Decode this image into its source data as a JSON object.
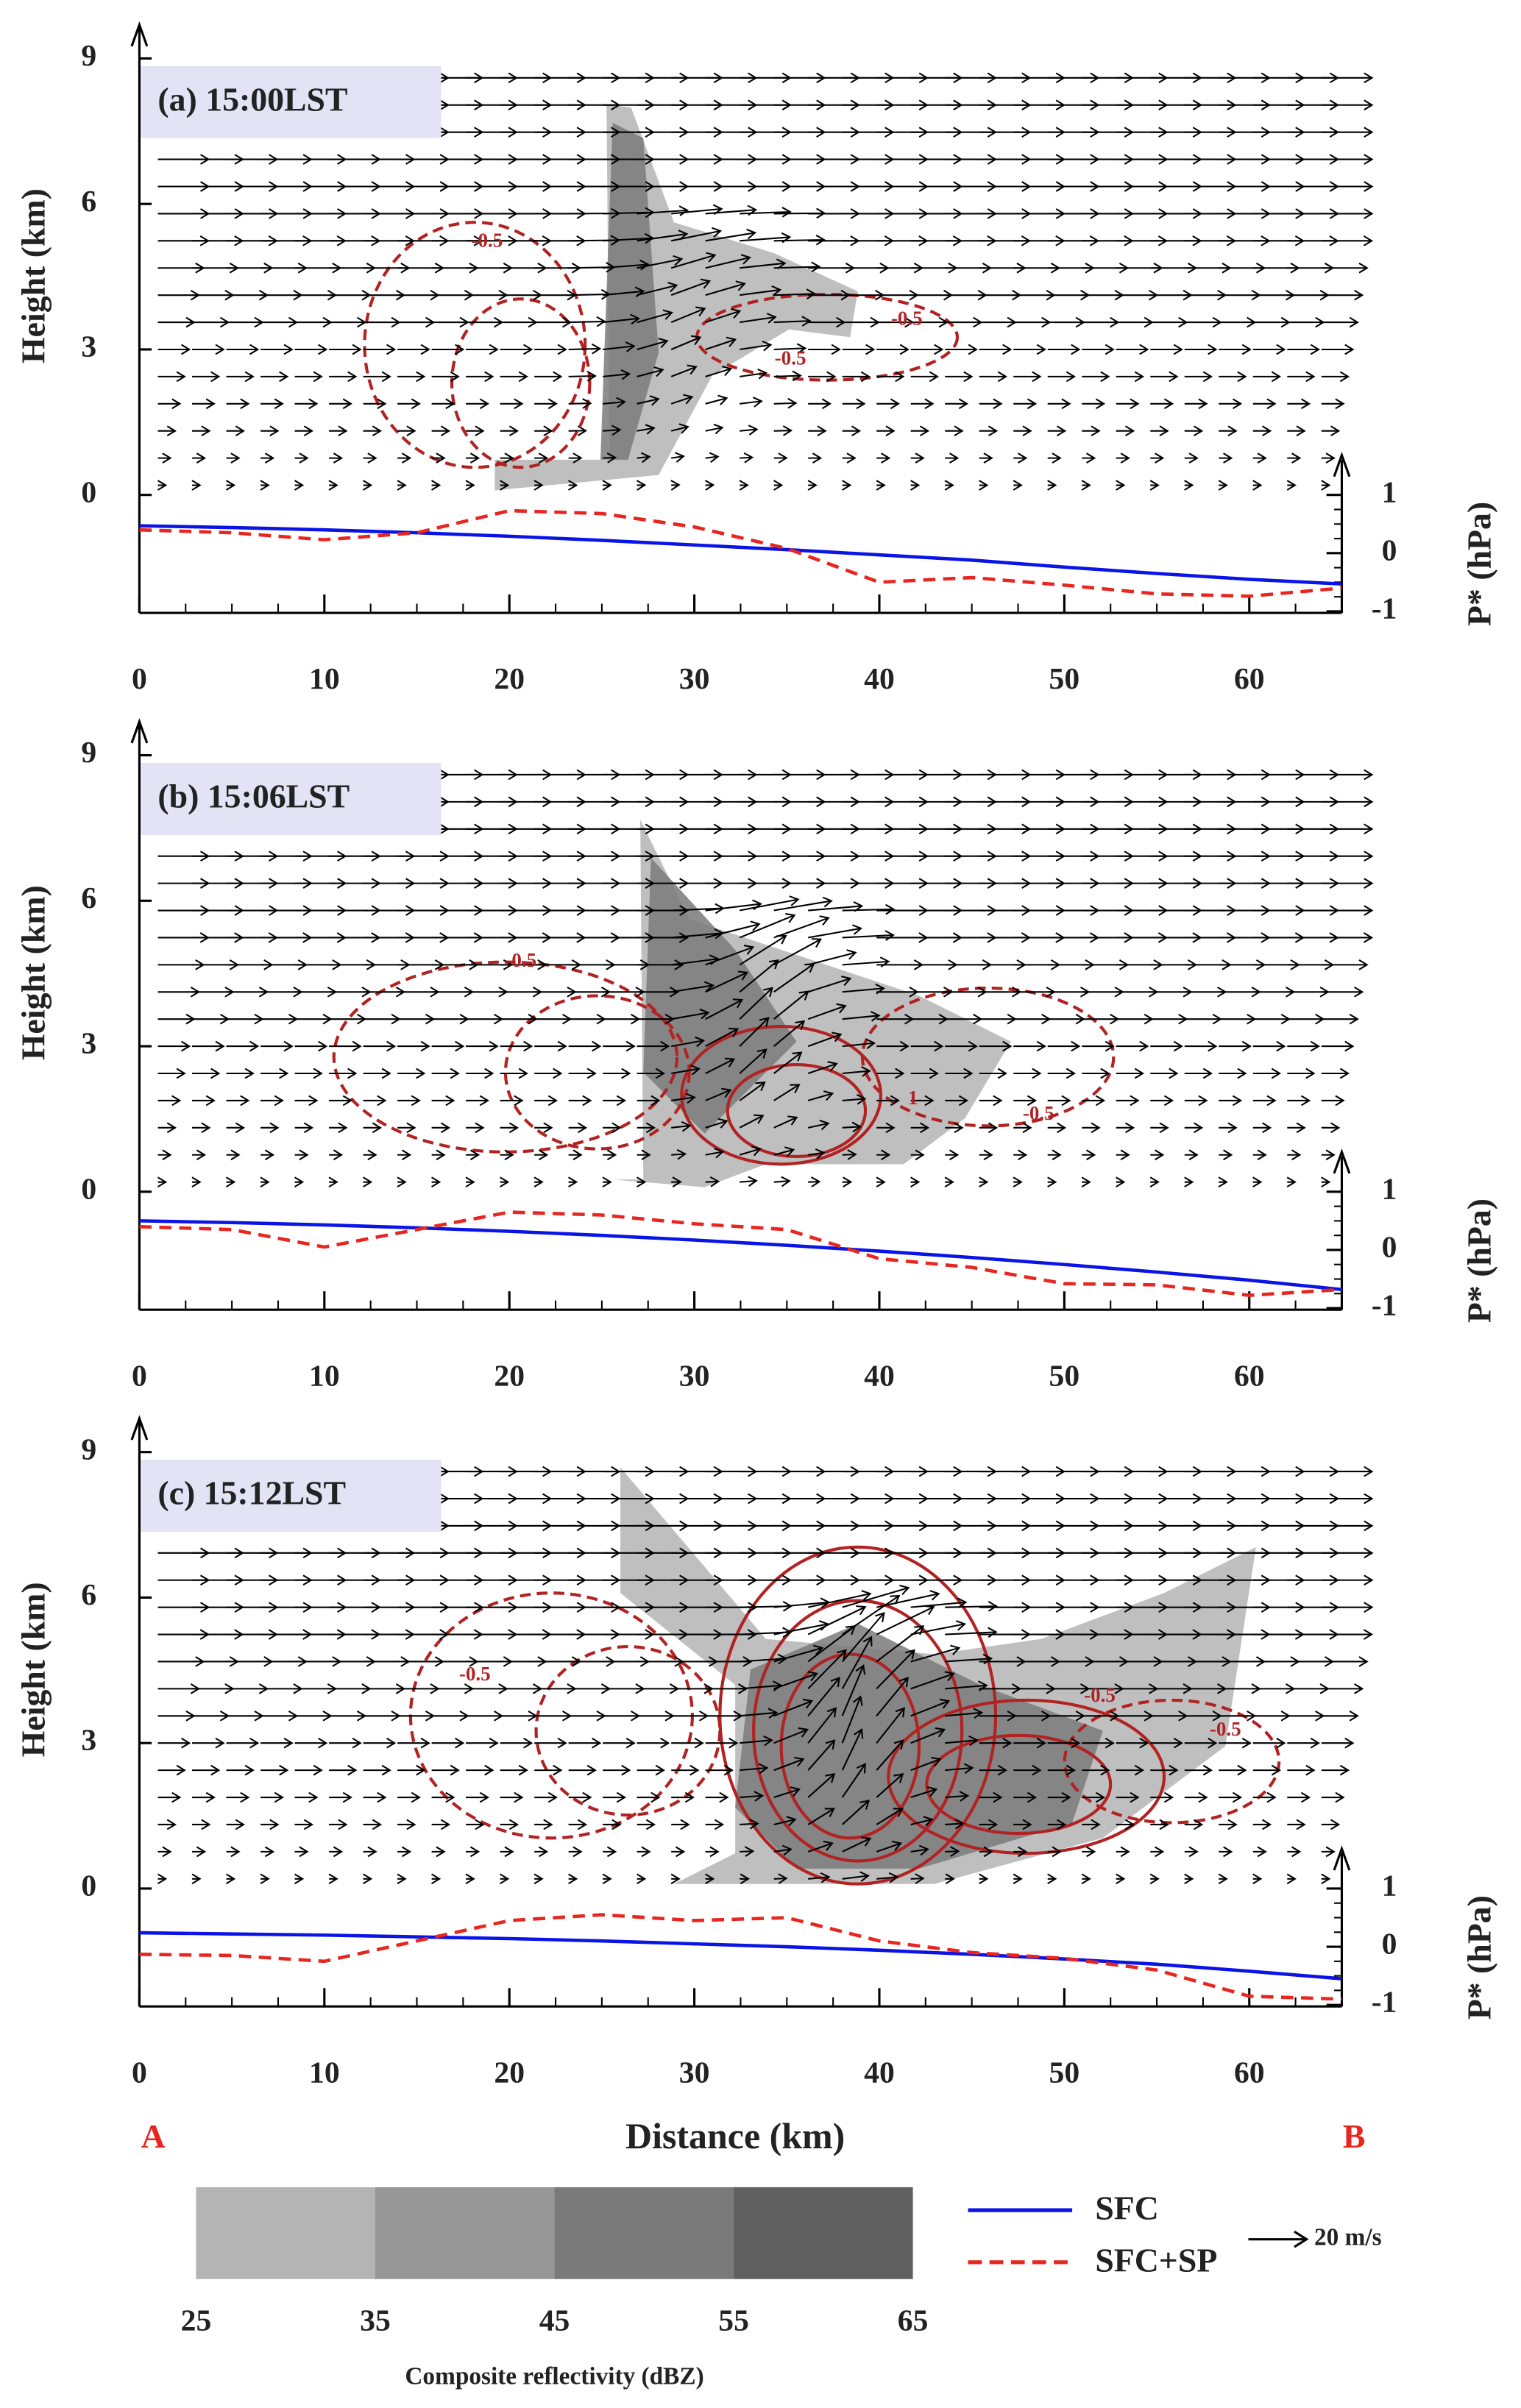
{
  "chart_data": [
    {
      "type": "line",
      "title": "(a) 15:00LST",
      "ylabel": "Height (km)",
      "y2label": "P* (hPa)",
      "x": [
        0,
        5,
        10,
        15,
        20,
        25,
        30,
        35,
        40,
        45,
        50,
        55,
        60,
        65
      ],
      "xlim": [
        0,
        65
      ],
      "xticks": [
        0,
        10,
        20,
        30,
        40,
        50,
        60
      ],
      "ylim": [
        0,
        9
      ],
      "yticks": [
        0,
        3,
        6,
        9
      ],
      "y2lim": [
        -1,
        1
      ],
      "y2ticks": [
        -1,
        0,
        1
      ],
      "series": [
        {
          "name": "SFC",
          "color": "#0a14e6",
          "axis": "y2",
          "values": [
            0.47,
            0.44,
            0.4,
            0.35,
            0.29,
            0.22,
            0.14,
            0.06,
            -0.03,
            -0.12,
            -0.24,
            -0.35,
            -0.45,
            -0.53
          ]
        },
        {
          "name": "SFC+SP",
          "color": "#e8251f",
          "axis": "y2",
          "dashed": true,
          "values": [
            0.4,
            0.35,
            0.23,
            0.35,
            0.73,
            0.68,
            0.45,
            0.08,
            -0.5,
            -0.42,
            -0.55,
            -0.7,
            -0.74,
            -0.6
          ]
        }
      ],
      "contour_labels": [
        "-0.5",
        "-0.5",
        "-0.5"
      ]
    },
    {
      "type": "line",
      "title": "(b) 15:06LST",
      "ylabel": "Height (km)",
      "y2label": "P* (hPa)",
      "x": [
        0,
        5,
        10,
        15,
        20,
        25,
        30,
        35,
        40,
        45,
        50,
        55,
        60,
        65
      ],
      "xlim": [
        0,
        65
      ],
      "xticks": [
        0,
        10,
        20,
        30,
        40,
        50,
        60
      ],
      "ylim": [
        0,
        9
      ],
      "yticks": [
        0,
        3,
        6,
        9
      ],
      "y2lim": [
        -1,
        1
      ],
      "y2ticks": [
        -1,
        0,
        1
      ],
      "series": [
        {
          "name": "SFC",
          "color": "#0a14e6",
          "axis": "y2",
          "values": [
            0.5,
            0.47,
            0.43,
            0.38,
            0.32,
            0.25,
            0.17,
            0.08,
            -0.02,
            -0.13,
            -0.25,
            -0.38,
            -0.52,
            -0.68
          ]
        },
        {
          "name": "SFC+SP",
          "color": "#e8251f",
          "axis": "y2",
          "dashed": true,
          "values": [
            0.4,
            0.35,
            0.05,
            0.35,
            0.65,
            0.6,
            0.45,
            0.35,
            -0.15,
            -0.3,
            -0.58,
            -0.6,
            -0.78,
            -0.68
          ]
        }
      ],
      "contour_labels": [
        "-0.5",
        "-0.5",
        "1"
      ]
    },
    {
      "type": "line",
      "title": "(c) 15:12LST",
      "ylabel": "Height (km)",
      "y2label": "P* (hPa)",
      "xlabel": "Distance (km)",
      "x": [
        0,
        5,
        10,
        15,
        20,
        25,
        30,
        35,
        40,
        45,
        50,
        55,
        60,
        65
      ],
      "xlim": [
        0,
        65
      ],
      "xticks": [
        0,
        10,
        20,
        30,
        40,
        50,
        60
      ],
      "ylim": [
        0,
        9
      ],
      "yticks": [
        0,
        3,
        6,
        9
      ],
      "y2lim": [
        -1,
        1
      ],
      "y2ticks": [
        -1,
        0,
        1
      ],
      "series": [
        {
          "name": "SFC",
          "color": "#0a14e6",
          "axis": "y2",
          "values": [
            0.24,
            0.22,
            0.2,
            0.17,
            0.14,
            0.1,
            0.05,
            0,
            -0.06,
            -0.13,
            -0.21,
            -0.3,
            -0.42,
            -0.55
          ]
        },
        {
          "name": "SFC+SP",
          "color": "#e8251f",
          "axis": "y2",
          "dashed": true,
          "values": [
            -0.13,
            -0.15,
            -0.25,
            0.1,
            0.45,
            0.55,
            0.45,
            0.5,
            0.1,
            -0.1,
            -0.2,
            -0.4,
            -0.85,
            -0.9
          ]
        }
      ],
      "contour_labels": [
        "-0.5",
        "-0.5",
        "-0.5"
      ]
    }
  ],
  "section_ends": [
    "A",
    "B"
  ],
  "colorbar": {
    "label": "Composite reflectivity (dBZ)",
    "ticks": [
      25,
      35,
      45,
      55,
      65
    ],
    "colors": [
      "#b4b4b4",
      "#969696",
      "#7a7a7a",
      "#606060"
    ]
  },
  "vector_key": "20 m/s"
}
